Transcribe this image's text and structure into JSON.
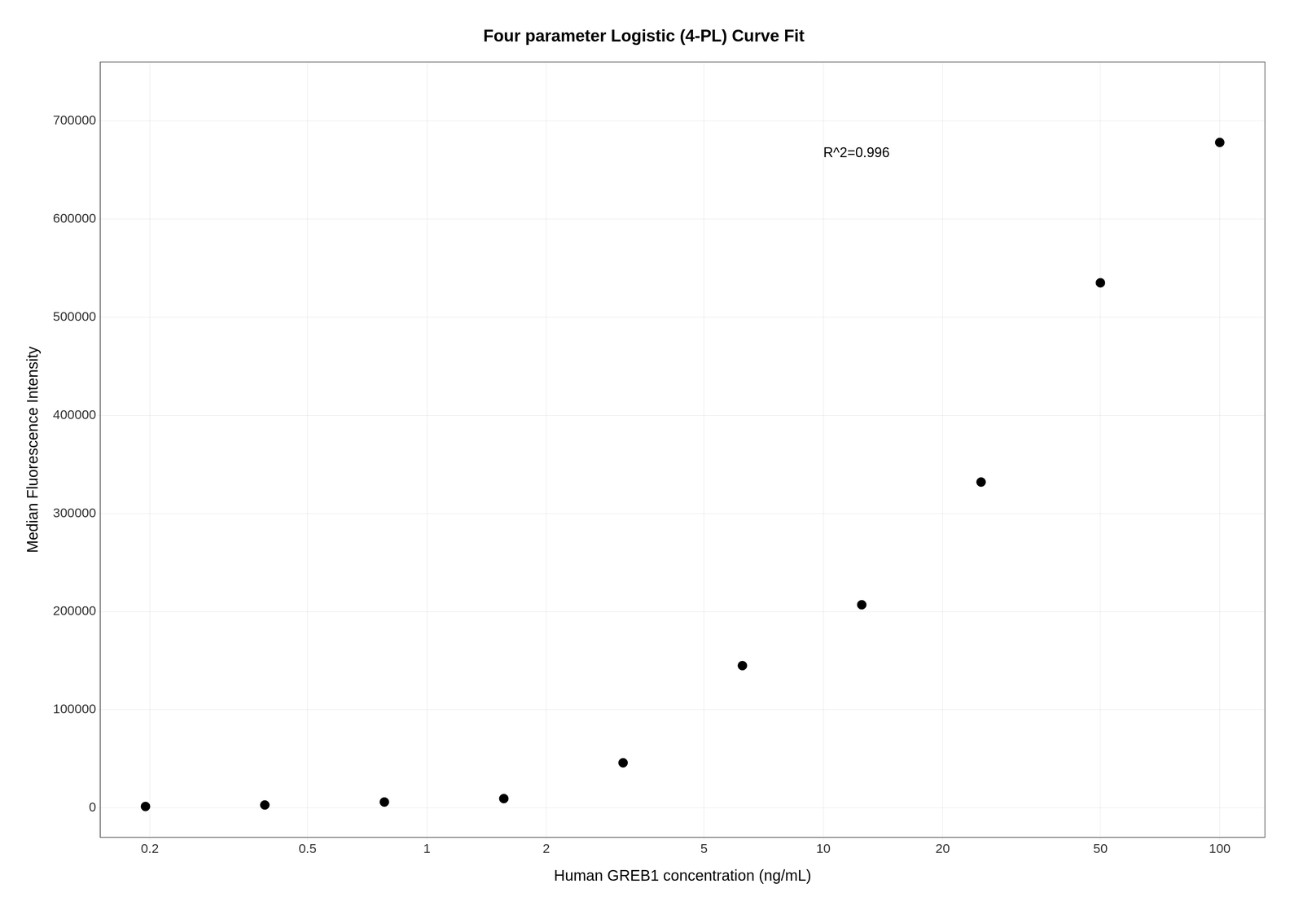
{
  "chart_data": {
    "type": "scatter",
    "title": "Four parameter Logistic (4-PL) Curve Fit",
    "x_label": "Human GREB1 concentration (ng/mL)",
    "y_label": "Median Fluorescence Intensity",
    "x": [
      0.195,
      0.39,
      0.781,
      1.563,
      3.125,
      6.25,
      12.5,
      25,
      50,
      100
    ],
    "values": [
      1500,
      3000,
      6000,
      9500,
      46000,
      145000,
      207000,
      332000,
      535000,
      678000
    ],
    "color": "#000000",
    "log": "x",
    "xlim": [
      0.15,
      130
    ],
    "ylim": [
      -30000,
      760000
    ],
    "xticks": [
      0.2,
      0.5,
      1,
      2,
      5,
      10,
      20,
      50,
      100
    ],
    "yticks": [
      0,
      100000,
      200000,
      300000,
      400000,
      500000,
      600000,
      700000
    ],
    "grid": true,
    "annotations": [
      {
        "text": "R^2=0.996",
        "x": 10,
        "y": 660000
      }
    ]
  }
}
